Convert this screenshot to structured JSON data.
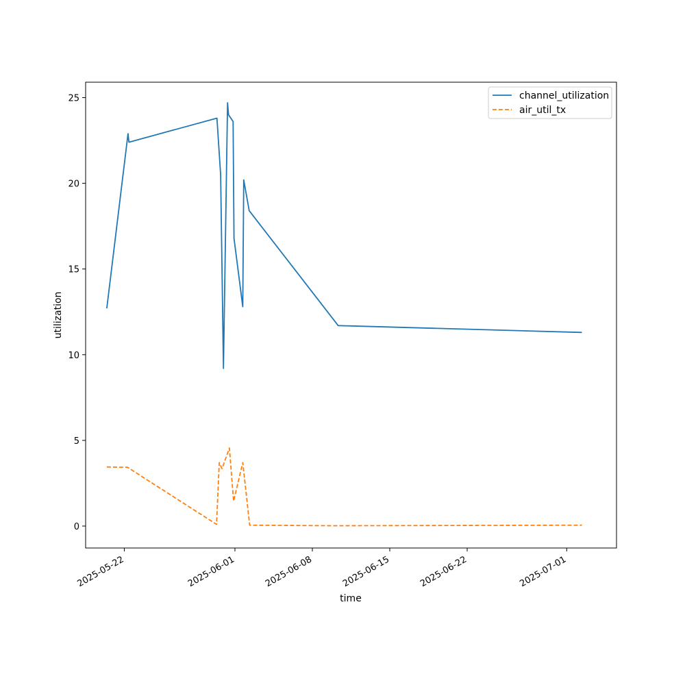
{
  "chart_data": {
    "type": "line",
    "title": "",
    "xlabel": "time",
    "ylabel": "utilization",
    "x_tick_labels": [
      "2025-05-22",
      "2025-06-01",
      "2025-06-08",
      "2025-06-15",
      "2025-06-22",
      "2025-07-01"
    ],
    "x_ticks": [
      "2025-05-22",
      "2025-06-01",
      "2025-06-08",
      "2025-06-15",
      "2025-06-22",
      "2025-07-01"
    ],
    "y_tick_labels": [
      "0",
      "5",
      "10",
      "15",
      "20",
      "25"
    ],
    "y_ticks": [
      0,
      5,
      10,
      15,
      20,
      25
    ],
    "xlim": [
      "2025-05-18T12:00",
      "2025-07-05T12:00"
    ],
    "ylim": [
      -1.28,
      25.9
    ],
    "grid": false,
    "legend_position": "top-right",
    "series": [
      {
        "name": "channel_utilization",
        "color": "#1f77b4",
        "dash": "solid",
        "points": [
          {
            "x": "2025-05-20T10:00",
            "y": 12.7
          },
          {
            "x": "2025-05-22T08:00",
            "y": 22.9
          },
          {
            "x": "2025-05-22T10:00",
            "y": 22.4
          },
          {
            "x": "2025-05-30T09:00",
            "y": 23.8
          },
          {
            "x": "2025-05-30T17:00",
            "y": 20.5
          },
          {
            "x": "2025-05-30T23:00",
            "y": 9.2
          },
          {
            "x": "2025-05-31T08:00",
            "y": 24.7
          },
          {
            "x": "2025-05-31T10:00",
            "y": 24.0
          },
          {
            "x": "2025-05-31T20:00",
            "y": 23.6
          },
          {
            "x": "2025-05-31T22:00",
            "y": 16.8
          },
          {
            "x": "2025-06-01T17:00",
            "y": 12.8
          },
          {
            "x": "2025-06-01T19:00",
            "y": 20.2
          },
          {
            "x": "2025-06-02T07:00",
            "y": 18.4
          },
          {
            "x": "2025-06-10T08:00",
            "y": 11.7
          },
          {
            "x": "2025-07-02T09:00",
            "y": 11.3
          }
        ]
      },
      {
        "name": "air_util_tx",
        "color": "#ff7f0e",
        "dash": "dashed",
        "points": [
          {
            "x": "2025-05-20T10:00",
            "y": 3.45
          },
          {
            "x": "2025-05-22T07:00",
            "y": 3.43
          },
          {
            "x": "2025-05-30T08:00",
            "y": 0.1
          },
          {
            "x": "2025-05-30T14:00",
            "y": 3.7
          },
          {
            "x": "2025-05-30T20:00",
            "y": 3.35
          },
          {
            "x": "2025-05-31T12:00",
            "y": 4.55
          },
          {
            "x": "2025-05-31T21:00",
            "y": 1.45
          },
          {
            "x": "2025-06-01T17:00",
            "y": 3.7
          },
          {
            "x": "2025-06-02T08:00",
            "y": 0.05
          },
          {
            "x": "2025-06-10T00:00",
            "y": 0.02
          },
          {
            "x": "2025-07-02T09:00",
            "y": 0.05
          }
        ]
      }
    ]
  }
}
